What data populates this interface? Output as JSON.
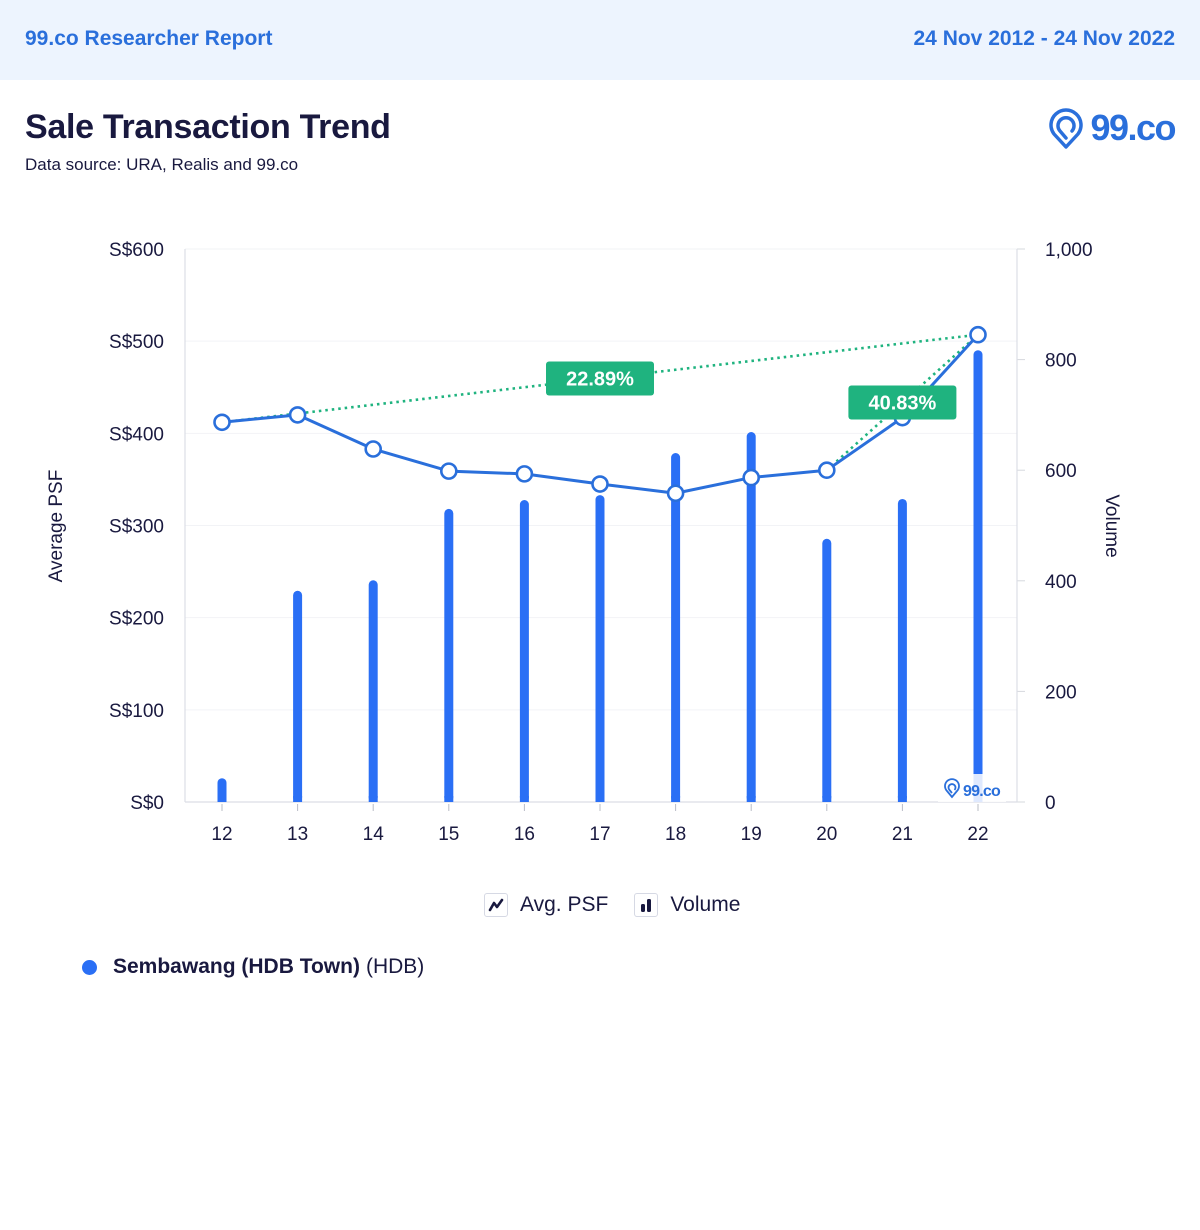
{
  "header": {
    "brand": "99.co Researcher Report",
    "date_range": "24 Nov 2012 - 24 Nov 2022"
  },
  "title": "Sale Transaction Trend",
  "subtitle": "Data source: URA, Realis and 99.co",
  "logo": {
    "icon": "location-pin-icon",
    "text": "99.co"
  },
  "watermark": {
    "icon": "location-pin-icon",
    "text": "99.co"
  },
  "legend": {
    "items": [
      {
        "label": "Avg. PSF",
        "icon": "line-chart-icon"
      },
      {
        "label": "Volume",
        "icon": "bar-chart-icon"
      }
    ]
  },
  "series_label": {
    "name": "Sembawang (HDB Town)",
    "type": "(HDB)",
    "color": "#2a6ff5"
  },
  "colors": {
    "primary": "#2a6ff5",
    "line": "#2a6fdb",
    "trend": "#1fb37f",
    "text": "#19193f",
    "header_bg": "#edf4fe"
  },
  "chart_data": {
    "type": "bar+line",
    "title": "Sale Transaction Trend",
    "xlabel": "",
    "categories": [
      "12",
      "13",
      "14",
      "15",
      "16",
      "17",
      "18",
      "19",
      "20",
      "21",
      "22"
    ],
    "left_axis": {
      "label": "Average PSF",
      "range": [
        0,
        600
      ],
      "ticks": [
        "S$0",
        "S$100",
        "S$200",
        "S$300",
        "S$400",
        "S$500",
        "S$600"
      ]
    },
    "right_axis": {
      "label": "Volume",
      "range": [
        0,
        1000
      ],
      "ticks": [
        "0",
        "200",
        "400",
        "600",
        "800",
        "1,000"
      ]
    },
    "series": [
      {
        "name": "Avg. PSF",
        "type": "line",
        "axis": "left",
        "values": [
          412,
          420,
          383,
          359,
          356,
          345,
          335,
          352,
          360,
          417,
          507
        ]
      },
      {
        "name": "Volume",
        "type": "bar",
        "axis": "right",
        "values": [
          43,
          382,
          401,
          530,
          546,
          555,
          631,
          669,
          476,
          548,
          817
        ]
      }
    ],
    "annotations": [
      {
        "label": "22.89%",
        "from": "12",
        "to": "22"
      },
      {
        "label": "40.83%",
        "from": "20",
        "to": "22"
      }
    ],
    "grid": true,
    "legend_position": "bottom-center"
  }
}
